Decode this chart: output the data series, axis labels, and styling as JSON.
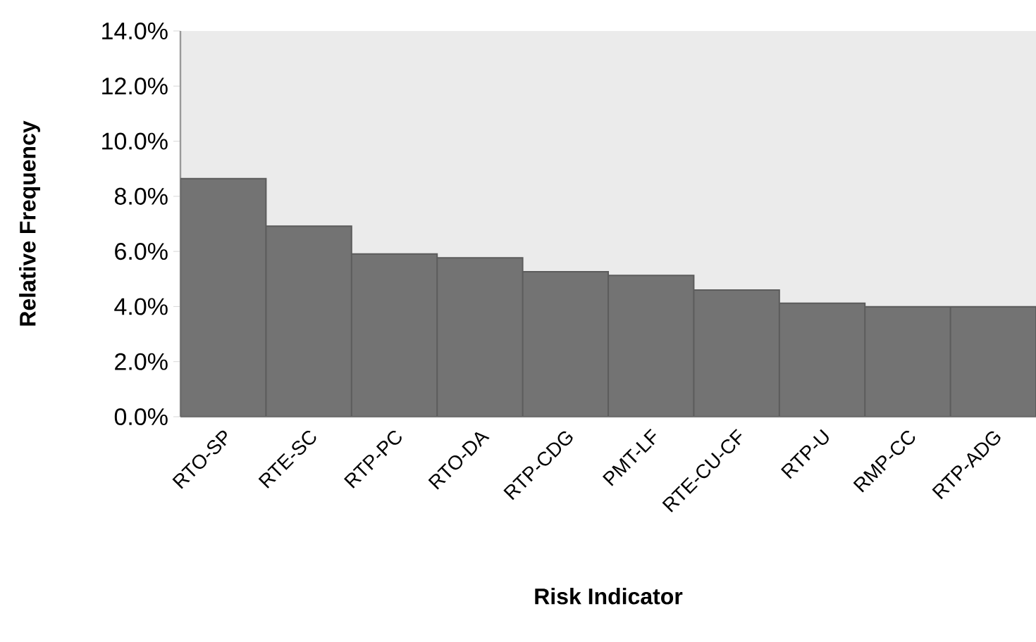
{
  "chart_data": {
    "type": "bar",
    "xlabel": "Risk Indicator",
    "ylabel": "Relative Frequency",
    "categories": [
      "RTO-SP",
      "RTE-SC",
      "RTP-PC",
      "RTO-DA",
      "RTP-CDG",
      "PMT-LF",
      "RTE-CU-CF",
      "RTP-U",
      "RMP-CC",
      "RTP-ADG"
    ],
    "values": [
      8.64,
      6.92,
      5.91,
      5.77,
      5.26,
      5.13,
      4.6,
      4.12,
      3.99,
      3.99
    ],
    "color": "#737373",
    "ylim": [
      0,
      14
    ],
    "yticks": [
      {
        "value": 0,
        "label": "0.0%"
      },
      {
        "value": 2,
        "label": "2.0%"
      },
      {
        "value": 4,
        "label": "4.0%"
      },
      {
        "value": 6,
        "label": "6.0%"
      },
      {
        "value": 8,
        "label": "8.0%"
      },
      {
        "value": 10,
        "label": "10.0%"
      },
      {
        "value": 12,
        "label": "12.0%"
      },
      {
        "value": 14,
        "label": "14.0%"
      }
    ]
  }
}
